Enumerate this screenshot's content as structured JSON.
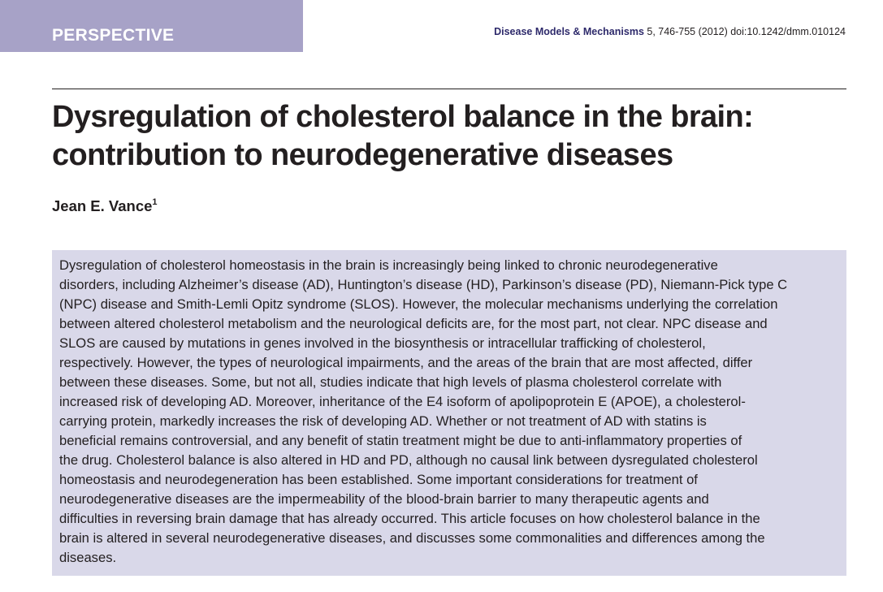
{
  "header": {
    "article_type": "PERSPECTIVE",
    "journal": "Disease Models & Mechanisms",
    "citation": " 5, 746-755 (2012) doi:10.1242/dmm.010124"
  },
  "article": {
    "title_lines": [
      "Dysregulation of cholesterol balance in the brain:",
      "contribution to neurodegenerative diseases"
    ],
    "author": "Jean E. Vance",
    "author_affiliation_mark": "1"
  },
  "abstract": {
    "lines": [
      "Dysregulation of cholesterol homeostasis in the brain is increasingly being linked to chronic neurodegenerative",
      "disorders, including Alzheimer’s disease (AD), Huntington’s disease (HD), Parkinson’s disease (PD), Niemann-Pick type C",
      "(NPC) disease and Smith-Lemli Opitz syndrome (SLOS). However, the molecular mechanisms underlying the correlation",
      "between altered cholesterol metabolism and the neurological deficits are, for the most part, not clear. NPC disease and",
      "SLOS are caused by mutations in genes involved in the biosynthesis or intracellular trafficking of cholesterol,",
      "respectively. However, the types of neurological impairments, and the areas of the brain that are most affected, differ",
      "between these diseases. Some, but not all, studies indicate that high levels of plasma cholesterol correlate with",
      "increased risk of developing AD. Moreover, inheritance of the E4 isoform of apolipoprotein E (APOE), a cholesterol-",
      "carrying protein, markedly increases the risk of developing AD. Whether or not treatment of AD with statins is",
      "beneficial remains controversial, and any benefit of statin treatment might be due to anti-inflammatory properties of",
      "the drug. Cholesterol balance is also altered in HD and PD, although no causal link between dysregulated cholesterol",
      "homeostasis and neurodegeneration has been established. Some important considerations for treatment of",
      "neurodegenerative diseases are the impermeability of the blood-brain barrier to many therapeutic agents and",
      "difficulties in reversing brain damage that has already occurred. This article focuses on how cholesterol balance in the",
      "brain is altered in several neurodegenerative diseases, and discusses some commonalities and differences among the",
      "diseases."
    ]
  },
  "colors": {
    "tag_band": "#a7a2c7",
    "abstract_background": "#d9d8e9",
    "journal_name": "#2e2a6b",
    "text": "#231f20"
  }
}
